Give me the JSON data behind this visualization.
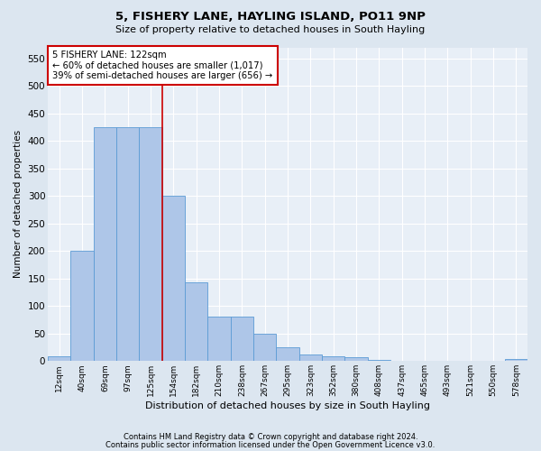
{
  "title": "5, FISHERY LANE, HAYLING ISLAND, PO11 9NP",
  "subtitle": "Size of property relative to detached houses in South Hayling",
  "xlabel": "Distribution of detached houses by size in South Hayling",
  "ylabel": "Number of detached properties",
  "categories": [
    "12sqm",
    "40sqm",
    "69sqm",
    "97sqm",
    "125sqm",
    "154sqm",
    "182sqm",
    "210sqm",
    "238sqm",
    "267sqm",
    "295sqm",
    "323sqm",
    "352sqm",
    "380sqm",
    "408sqm",
    "437sqm",
    "465sqm",
    "493sqm",
    "521sqm",
    "550sqm",
    "578sqm"
  ],
  "values": [
    8,
    200,
    425,
    425,
    425,
    300,
    143,
    80,
    80,
    50,
    25,
    12,
    8,
    7,
    2,
    1,
    1,
    1,
    1,
    1,
    4
  ],
  "bar_color": "#aec6e8",
  "bar_edge_color": "#5b9bd5",
  "marker_line_index": 4,
  "marker_label": "5 FISHERY LANE: 122sqm",
  "annotation_line1": "← 60% of detached houses are smaller (1,017)",
  "annotation_line2": "39% of semi-detached houses are larger (656) →",
  "annotation_box_color": "#ffffff",
  "annotation_box_edge": "#cc0000",
  "marker_line_color": "#cc0000",
  "ylim": [
    0,
    570
  ],
  "yticks": [
    0,
    50,
    100,
    150,
    200,
    250,
    300,
    350,
    400,
    450,
    500,
    550
  ],
  "footer1": "Contains HM Land Registry data © Crown copyright and database right 2024.",
  "footer2": "Contains public sector information licensed under the Open Government Licence v3.0.",
  "bg_color": "#dce6f0",
  "plot_bg_color": "#e8eff7"
}
